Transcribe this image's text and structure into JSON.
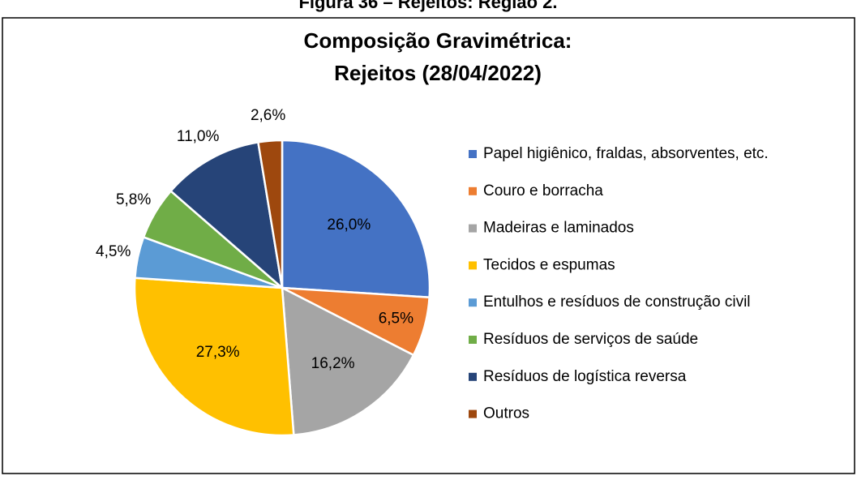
{
  "caption": "Figura 36 – Rejeitos: Região 2.",
  "chart_data": {
    "type": "pie",
    "title": [
      "Composição Gravimétrica:",
      "Rejeitos (28/04/2022)"
    ],
    "categories": [
      "Papel higiênico, fraldas, absorventes, etc.",
      "Couro e borracha",
      "Madeiras e laminados",
      "Tecidos e espumas",
      "Entulhos e resíduos de construção civil",
      "Resíduos de serviços de saúde",
      "Resíduos de logística reversa",
      "Outros"
    ],
    "values": [
      26.0,
      6.5,
      16.2,
      27.3,
      4.5,
      5.8,
      11.0,
      2.6
    ],
    "value_labels": [
      "26,0%",
      "6,5%",
      "16,2%",
      "27,3%",
      "4,5%",
      "5,8%",
      "11,0%",
      "2,6%"
    ],
    "colors": [
      "#4472c4",
      "#ed7d31",
      "#a5a5a5",
      "#ffc000",
      "#5b9bd5",
      "#70ad47",
      "#264478",
      "#9e480e"
    ],
    "legend": "right"
  }
}
